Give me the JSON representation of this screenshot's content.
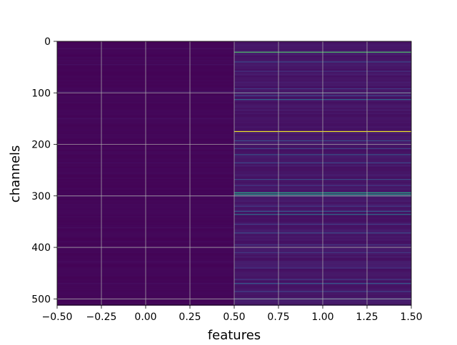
{
  "chart_data": {
    "type": "heatmap",
    "title": "",
    "xlabel": "features",
    "ylabel": "channels",
    "xlim": [
      -0.5,
      1.5
    ],
    "ylim": [
      512,
      0
    ],
    "x_ticks": [
      "−0.50",
      "−0.25",
      "0.00",
      "0.25",
      "0.50",
      "0.75",
      "1.00",
      "1.25",
      "1.50"
    ],
    "y_ticks": [
      "0",
      "100",
      "200",
      "300",
      "400",
      "500"
    ],
    "grid": true,
    "colormap": "viridis",
    "columns": [
      {
        "feature": 0,
        "base_value": 0.02,
        "bands": [
          {
            "channel": 14,
            "value": 0.06
          },
          {
            "channel": 45,
            "value": 0.05
          },
          {
            "channel": 98,
            "value": 0.09
          },
          {
            "channel": 150,
            "value": 0.05
          },
          {
            "channel": 236,
            "value": 0.05
          },
          {
            "channel": 301,
            "value": 0.06
          },
          {
            "channel": 362,
            "value": 0.05
          },
          {
            "channel": 428,
            "value": 0.05
          },
          {
            "channel": 470,
            "value": 0.05
          }
        ]
      },
      {
        "feature": 1,
        "base_value": 0.08,
        "bands": [
          {
            "channel": 21,
            "value": 0.72
          },
          {
            "channel": 40,
            "value": 0.3
          },
          {
            "channel": 58,
            "value": 0.2
          },
          {
            "channel": 92,
            "value": 0.22
          },
          {
            "channel": 100,
            "value": 0.32
          },
          {
            "channel": 105,
            "value": 0.25
          },
          {
            "channel": 113,
            "value": 0.4
          },
          {
            "channel": 175,
            "value": 0.98
          },
          {
            "channel": 193,
            "value": 0.3
          },
          {
            "channel": 208,
            "value": 0.25
          },
          {
            "channel": 220,
            "value": 0.35
          },
          {
            "channel": 236,
            "value": 0.28
          },
          {
            "channel": 268,
            "value": 0.3
          },
          {
            "channel": 280,
            "value": 0.2
          },
          {
            "channel": 294,
            "value": 0.62
          },
          {
            "channel": 297,
            "value": 0.55
          },
          {
            "channel": 300,
            "value": 0.45
          },
          {
            "channel": 320,
            "value": 0.22
          },
          {
            "channel": 330,
            "value": 0.35
          },
          {
            "channel": 336,
            "value": 0.42
          },
          {
            "channel": 355,
            "value": 0.22
          },
          {
            "channel": 372,
            "value": 0.3
          },
          {
            "channel": 395,
            "value": 0.2
          },
          {
            "channel": 410,
            "value": 0.22
          },
          {
            "channel": 440,
            "value": 0.2
          },
          {
            "channel": 462,
            "value": 0.22
          },
          {
            "channel": 470,
            "value": 0.35
          },
          {
            "channel": 486,
            "value": 0.25
          },
          {
            "channel": 500,
            "value": 0.3
          }
        ]
      }
    ]
  }
}
